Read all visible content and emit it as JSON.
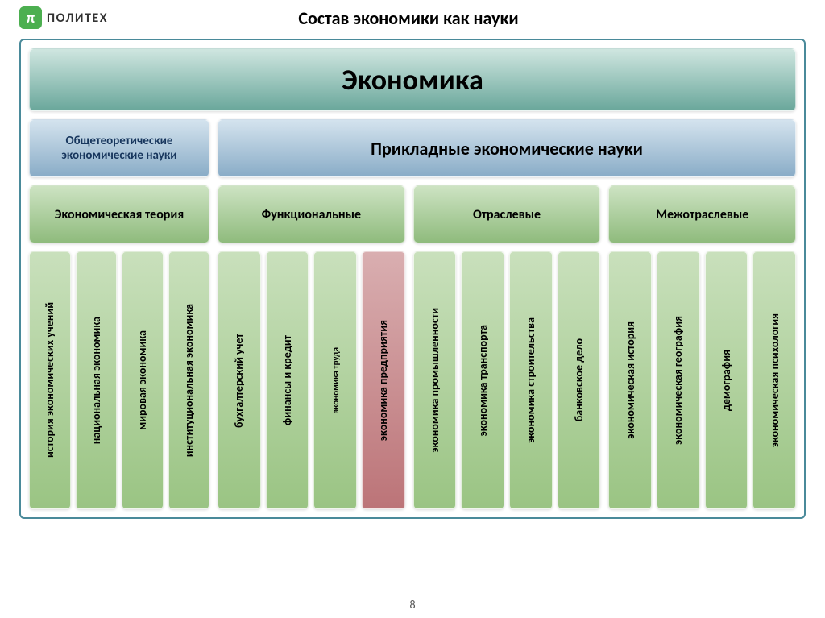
{
  "header": {
    "logo_pi": "π",
    "logo_text": "ПОЛИТЕХ",
    "title": "Состав экономики как науки"
  },
  "colors": {
    "teal_grad_top": "#cfe6e0",
    "teal_grad_bot": "#6aa79b",
    "blue_grad_top": "#d4e3ee",
    "blue_grad_bot": "#89acc7",
    "green_grad_top": "#cde3c3",
    "green_grad_bot": "#8fbb7d",
    "green_col_top": "#c9e0bc",
    "green_col_bot": "#9ac483",
    "red_col_top": "#d9aeb0",
    "red_col_bot": "#bc7478",
    "border_blue": "#4a8a9a"
  },
  "top": "Экономика",
  "level2": {
    "left": "Общетеоретические экономические науки",
    "right": "Прикладные экономические науки"
  },
  "level3": {
    "a": "Экономическая теория",
    "b": "Функциональные",
    "c": "Отраслевые",
    "d": "Межотраслевые"
  },
  "group_a": [
    "история экономических учений",
    "национальная экономика",
    "мировая экономика",
    "институциональная экономика"
  ],
  "group_b": [
    {
      "label": "бухгалтерский учет",
      "color": "green"
    },
    {
      "label": "финансы и кредит",
      "color": "green"
    },
    {
      "label": "экономика труда",
      "color": "green",
      "small": true
    },
    {
      "label": "экономика предприятия",
      "color": "red"
    }
  ],
  "group_c": [
    "экономика промышленности",
    "экономика транспорта",
    "экономика строительства",
    "банковское дело"
  ],
  "group_d": [
    "экономическая история",
    "экономическая география",
    "демография",
    "экономическая психология"
  ],
  "page_number": "8"
}
